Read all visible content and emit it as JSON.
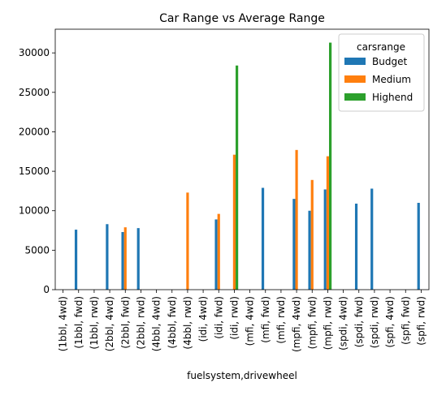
{
  "chart_data": {
    "type": "bar",
    "title": "Car Range vs Average Range",
    "xlabel": "fuelsystem,drivewheel",
    "ylabel": "",
    "ylim": [
      0,
      33000
    ],
    "yticks": [
      0,
      5000,
      10000,
      15000,
      20000,
      25000,
      30000
    ],
    "grid": false,
    "legend": {
      "title": "carsrange",
      "placement": "top-right"
    },
    "categories": [
      "(1bbl, 4wd)",
      "(1bbl, fwd)",
      "(1bbl, rwd)",
      "(2bbl, 4wd)",
      "(2bbl, fwd)",
      "(2bbl, rwd)",
      "(4bbl, 4wd)",
      "(4bbl, fwd)",
      "(4bbl, rwd)",
      "(idi, 4wd)",
      "(idi, fwd)",
      "(idi, rwd)",
      "(mfi, 4wd)",
      "(mfi, fwd)",
      "(mfi, rwd)",
      "(mpfi, 4wd)",
      "(mpfi, fwd)",
      "(mpfi, rwd)",
      "(spdi, 4wd)",
      "(spdi, fwd)",
      "(spdi, rwd)",
      "(spfi, 4wd)",
      "(spfi, fwd)",
      "(spfi, rwd)"
    ],
    "series": [
      {
        "name": "Budget",
        "color": "#1f77b4",
        "values": [
          0,
          7600,
          0,
          8300,
          7300,
          7800,
          0,
          0,
          0,
          0,
          8900,
          0,
          0,
          12900,
          0,
          11500,
          10000,
          12700,
          0,
          10900,
          12800,
          0,
          0,
          11000
        ]
      },
      {
        "name": "Medium",
        "color": "#ff7f0e",
        "values": [
          0,
          0,
          0,
          0,
          7900,
          0,
          0,
          0,
          12300,
          0,
          9600,
          17100,
          0,
          0,
          0,
          17700,
          13900,
          16900,
          0,
          0,
          0,
          0,
          0,
          0
        ]
      },
      {
        "name": "Highend",
        "color": "#2ca02c",
        "values": [
          0,
          0,
          0,
          0,
          0,
          0,
          0,
          0,
          0,
          0,
          0,
          28400,
          0,
          0,
          0,
          0,
          0,
          31300,
          0,
          0,
          0,
          0,
          0,
          0
        ]
      }
    ]
  }
}
